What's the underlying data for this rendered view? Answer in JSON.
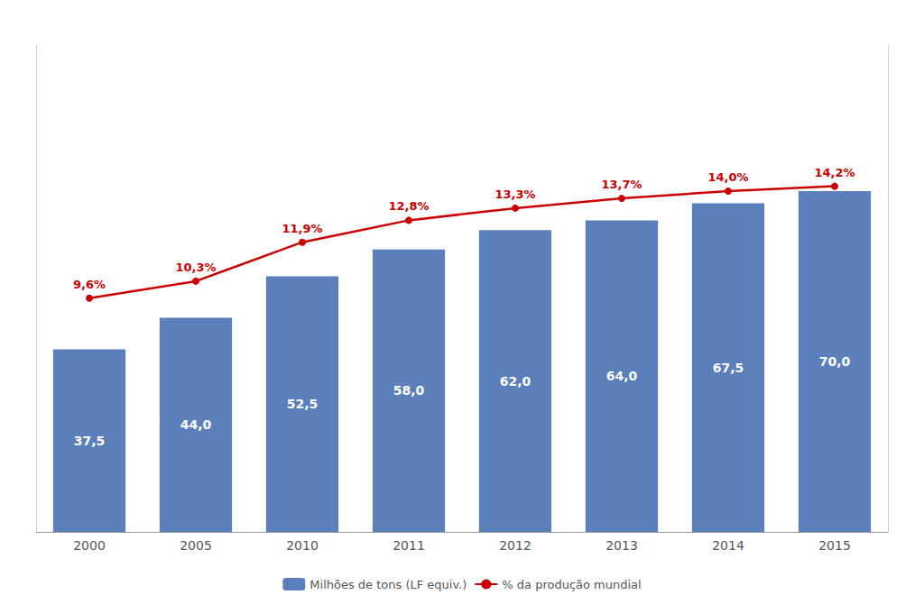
{
  "chart_data": {
    "type": "bar",
    "categories": [
      "2000",
      "2005",
      "2010",
      "2011",
      "2012",
      "2013",
      "2014",
      "2015"
    ],
    "series": [
      {
        "name": "Milhões de tons (LF equiv.)",
        "type": "bar",
        "color": "#5b7fbb",
        "values": [
          37.5,
          44.0,
          52.5,
          58.0,
          62.0,
          64.0,
          67.5,
          70.0
        ],
        "value_labels": [
          "37,5",
          "44,0",
          "52,5",
          "58,0",
          "62,0",
          "64,0",
          "67,5",
          "70,0"
        ]
      },
      {
        "name": "% da produção mundial",
        "type": "line",
        "axis": "y2",
        "color": "#cc0000",
        "marker": "circle",
        "values": [
          9.6,
          10.3,
          11.9,
          12.8,
          13.3,
          13.7,
          14.0,
          14.2
        ],
        "value_labels": [
          "9,6%",
          "10,3%",
          "11,9%",
          "12,8%",
          "13,3%",
          "13,7%",
          "14,0%",
          "14,2%"
        ]
      }
    ],
    "ylim": [
      0,
      100
    ],
    "y2lim": [
      0,
      20
    ],
    "tick_labels": "x",
    "data_labels": true,
    "legend": "bottom",
    "grid": false
  }
}
